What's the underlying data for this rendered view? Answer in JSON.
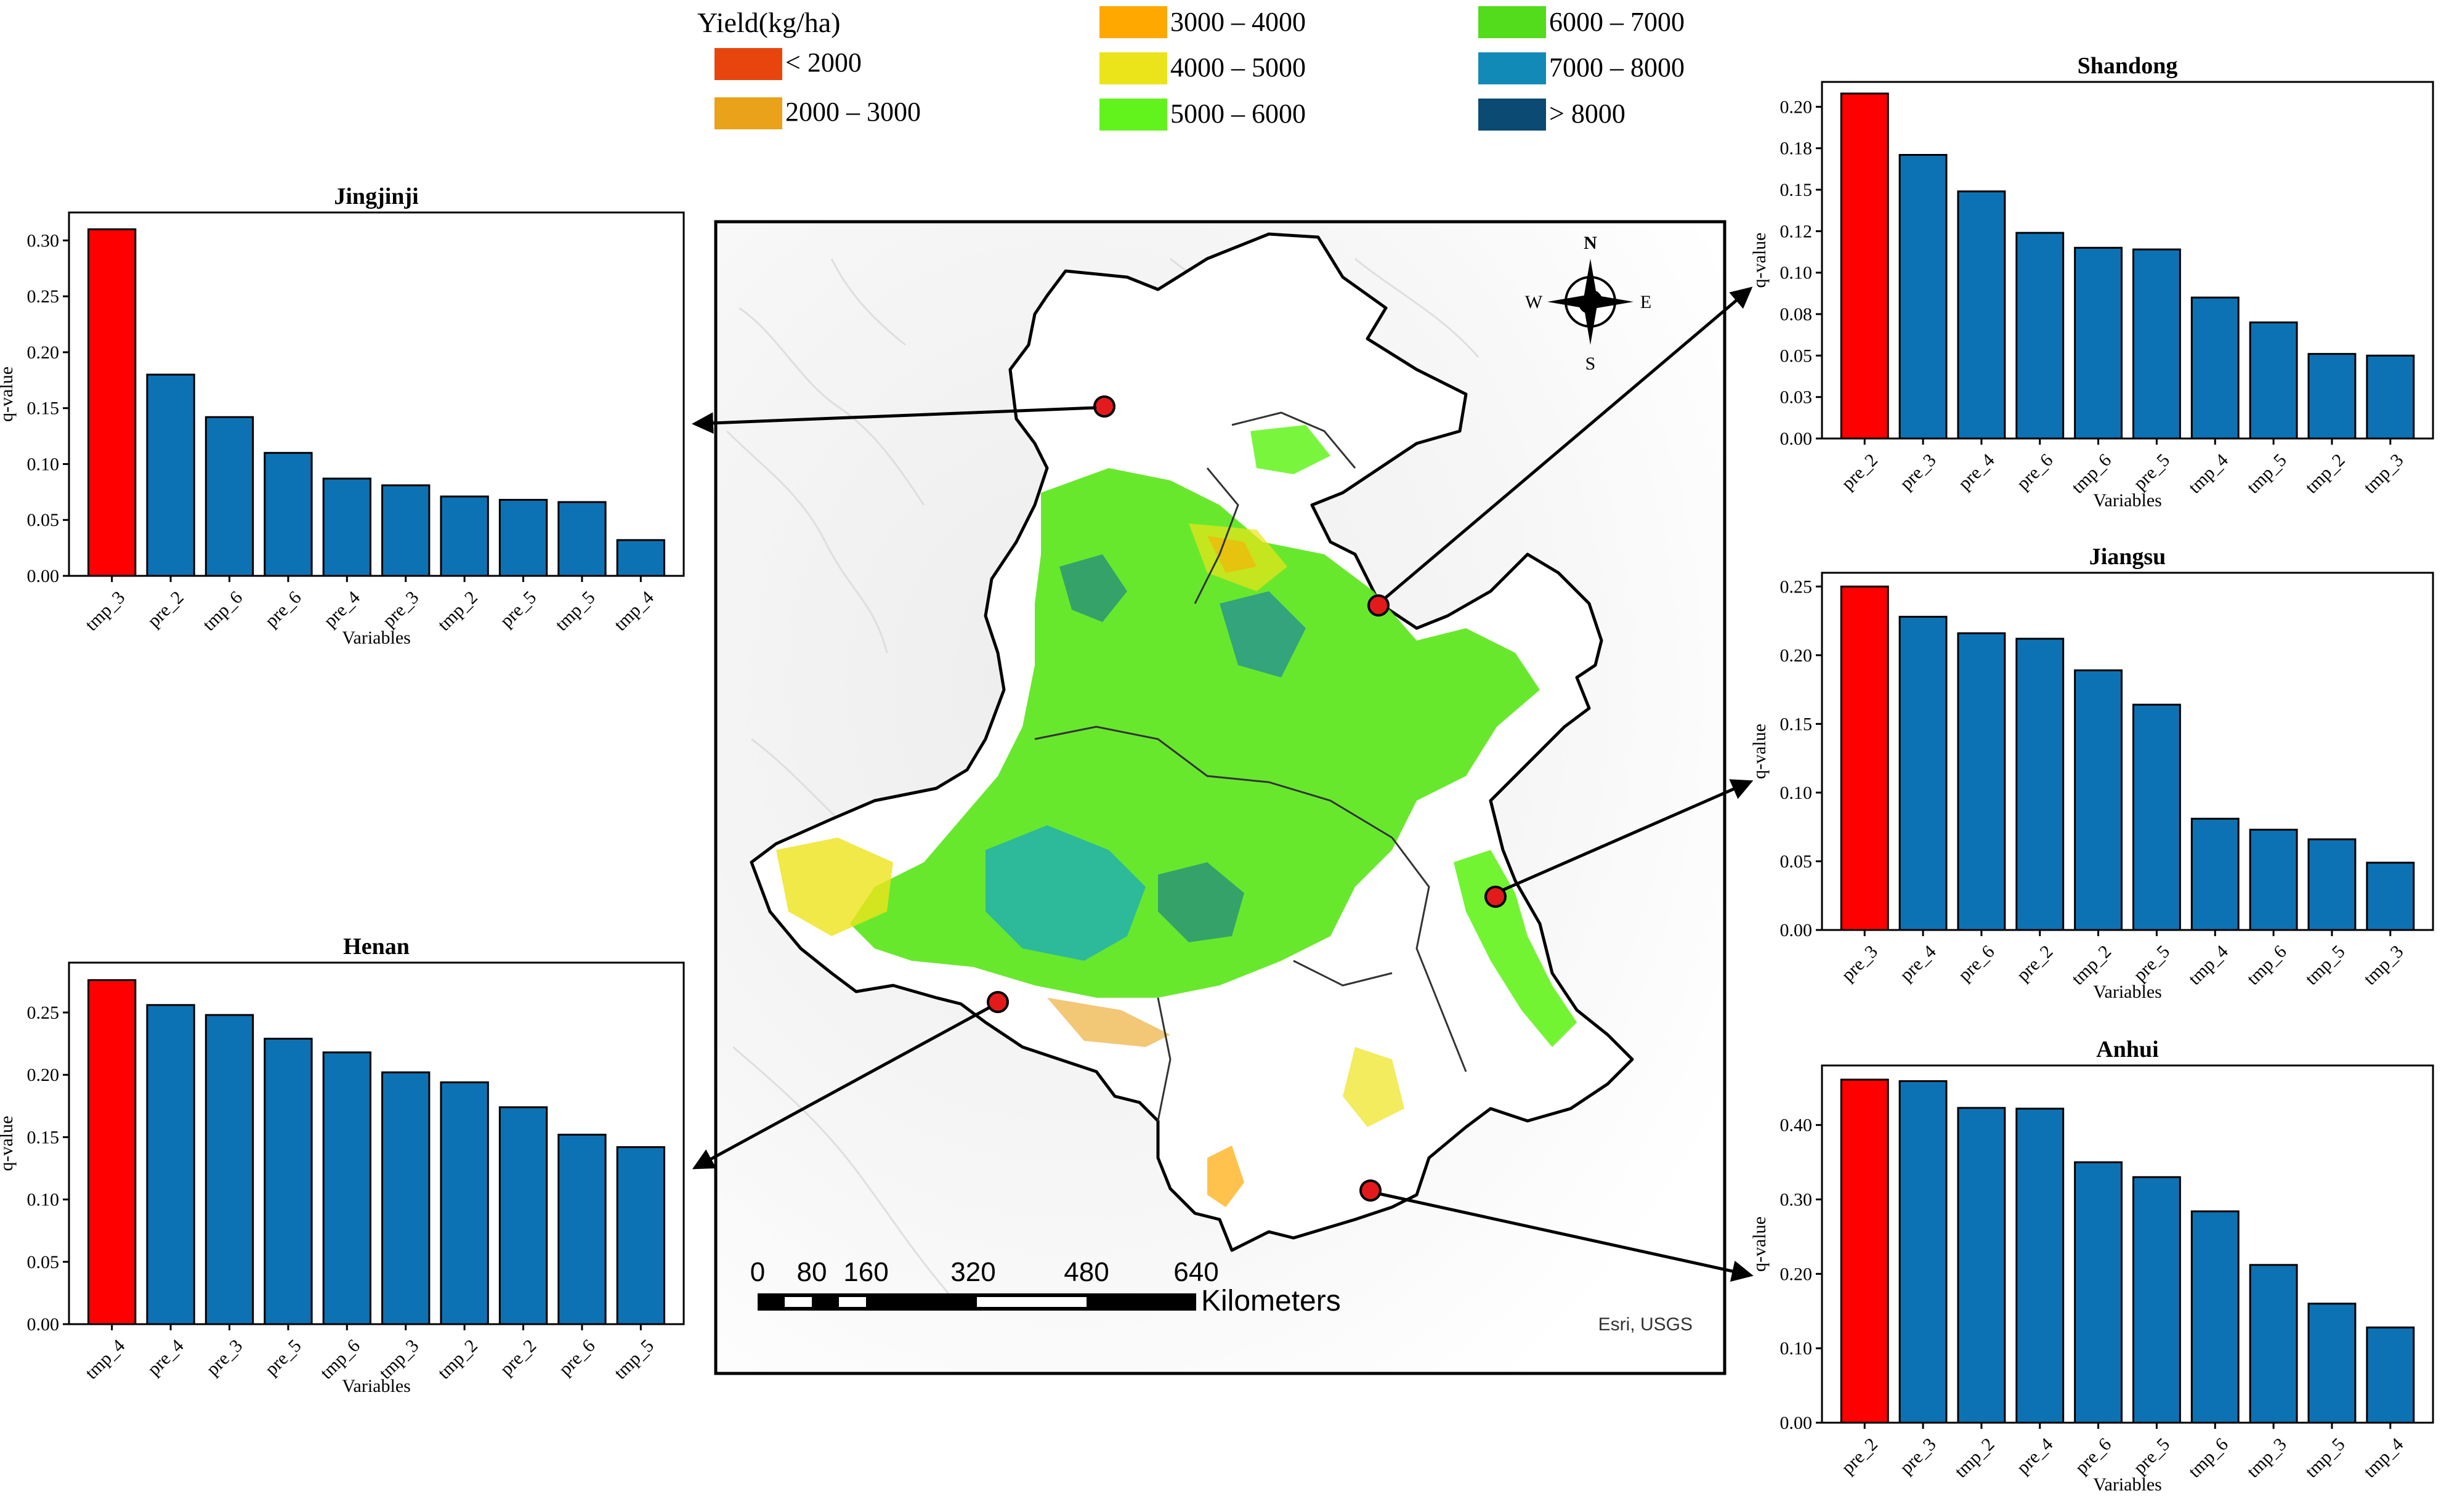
{
  "legend": {
    "title": "Yield(kg/ha)",
    "items": [
      {
        "label": "< 2000",
        "color": "#e8450e"
      },
      {
        "label": "2000 – 3000",
        "color": "#e9a21a"
      },
      {
        "label": "3000 – 4000",
        "color": "#ffa800"
      },
      {
        "label": "4000 – 5000",
        "color": "#ece41a"
      },
      {
        "label": "5000 – 6000",
        "color": "#63f31c"
      },
      {
        "label": "6000 – 7000",
        "color": "#52dc1b"
      },
      {
        "label": "7000 – 8000",
        "color": "#128ab8"
      },
      {
        "label": "> 8000",
        "color": "#0b4a72"
      }
    ]
  },
  "map": {
    "compass": {
      "n": "N",
      "s": "S",
      "e": "E",
      "w": "W"
    },
    "scalebar": {
      "ticks": [
        "0",
        "80",
        "160",
        "320",
        "480",
        "640"
      ],
      "unit": "Kilometers"
    },
    "credit": "Esri, USGS"
  },
  "colors": {
    "highlight": "#ff0000",
    "bar": "#0d72b3",
    "marker": "#e31a1c"
  },
  "chart_data": [
    {
      "type": "bar",
      "id": "jingjinji",
      "title": "Jingjinji",
      "xlabel": "Variables",
      "ylabel": "q-value",
      "categories": [
        "tmp_3",
        "pre_2",
        "tmp_6",
        "pre_6",
        "pre_4",
        "pre_3",
        "tmp_2",
        "pre_5",
        "tmp_5",
        "tmp_4"
      ],
      "values": [
        0.31,
        0.18,
        0.142,
        0.11,
        0.087,
        0.081,
        0.071,
        0.068,
        0.066,
        0.032
      ],
      "highlight_index": 0,
      "ylim": [
        0,
        0.325
      ],
      "yticks": [
        "0.00",
        "0.05",
        "0.10",
        "0.15",
        "0.20",
        "0.25",
        "0.30"
      ],
      "ytick_values": [
        0,
        0.05,
        0.1,
        0.15,
        0.2,
        0.25,
        0.3
      ]
    },
    {
      "type": "bar",
      "id": "henan",
      "title": "Henan",
      "xlabel": "Variables",
      "ylabel": "q-value",
      "categories": [
        "tmp_4",
        "pre_4",
        "pre_3",
        "pre_5",
        "tmp_6",
        "tmp_3",
        "tmp_2",
        "pre_2",
        "pre_6",
        "tmp_5"
      ],
      "values": [
        0.276,
        0.256,
        0.248,
        0.229,
        0.218,
        0.202,
        0.194,
        0.174,
        0.152,
        0.142
      ],
      "highlight_index": 0,
      "ylim": [
        0,
        0.29
      ],
      "yticks": [
        "0.00",
        "0.05",
        "0.10",
        "0.15",
        "0.20",
        "0.25"
      ],
      "ytick_values": [
        0,
        0.05,
        0.1,
        0.15,
        0.2,
        0.25
      ]
    },
    {
      "type": "bar",
      "id": "shandong",
      "title": "Shandong",
      "xlabel": "Variables",
      "ylabel": "q-value",
      "categories": [
        "pre_2",
        "pre_3",
        "pre_4",
        "pre_6",
        "tmp_6",
        "pre_5",
        "tmp_4",
        "tmp_5",
        "tmp_2",
        "tmp_3"
      ],
      "values": [
        0.208,
        0.171,
        0.149,
        0.124,
        0.115,
        0.114,
        0.085,
        0.07,
        0.051,
        0.05
      ],
      "highlight_index": 0,
      "ylim": [
        0,
        0.215
      ],
      "yticks": [
        "0.00",
        "0.03",
        "0.05",
        "0.08",
        "0.10",
        "0.12",
        "0.15",
        "0.18",
        "0.20"
      ],
      "ytick_values": [
        0,
        0.025,
        0.05,
        0.075,
        0.1,
        0.125,
        0.15,
        0.175,
        0.2
      ]
    },
    {
      "type": "bar",
      "id": "jiangsu",
      "title": "Jiangsu",
      "xlabel": "Variables",
      "ylabel": "q-value",
      "categories": [
        "pre_3",
        "pre_4",
        "pre_6",
        "pre_2",
        "tmp_2",
        "pre_5",
        "tmp_4",
        "tmp_6",
        "tmp_5",
        "tmp_3"
      ],
      "values": [
        0.25,
        0.228,
        0.216,
        0.212,
        0.189,
        0.164,
        0.081,
        0.073,
        0.066,
        0.049
      ],
      "highlight_index": 0,
      "ylim": [
        0,
        0.26
      ],
      "yticks": [
        "0.00",
        "0.05",
        "0.10",
        "0.15",
        "0.20",
        "0.25"
      ],
      "ytick_values": [
        0,
        0.05,
        0.1,
        0.15,
        0.2,
        0.25
      ]
    },
    {
      "type": "bar",
      "id": "anhui",
      "title": "Anhui",
      "xlabel": "Variables",
      "ylabel": "q-value",
      "categories": [
        "pre_2",
        "pre_3",
        "tmp_2",
        "pre_4",
        "pre_6",
        "pre_5",
        "tmp_6",
        "tmp_3",
        "tmp_5",
        "tmp_4"
      ],
      "values": [
        0.461,
        0.459,
        0.423,
        0.422,
        0.35,
        0.33,
        0.284,
        0.212,
        0.16,
        0.128
      ],
      "highlight_index": 0,
      "ylim": [
        0,
        0.48
      ],
      "yticks": [
        "0.00",
        "0.10",
        "0.20",
        "0.30",
        "0.40"
      ],
      "ytick_values": [
        0,
        0.1,
        0.2,
        0.3,
        0.4
      ]
    }
  ]
}
